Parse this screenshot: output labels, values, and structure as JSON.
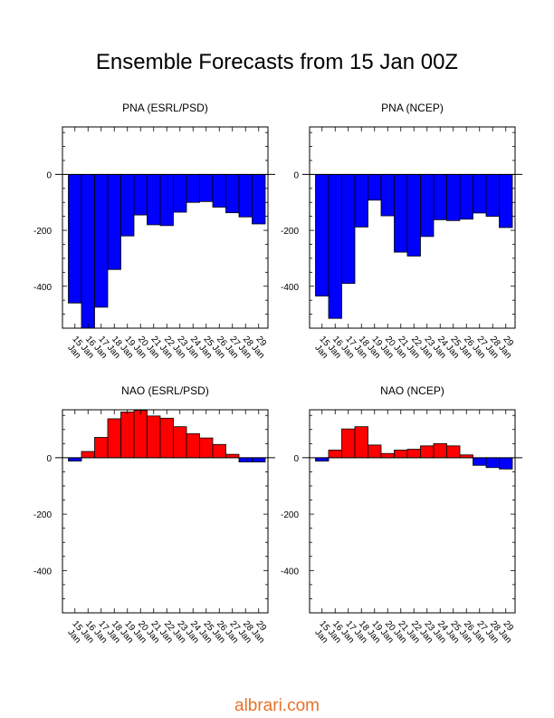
{
  "title": "Ensemble Forecasts from 15 Jan 00Z",
  "watermark": "albrari.com",
  "colors": {
    "positive": "#ff0000",
    "negative": "#0000ff",
    "axis": "#000000"
  },
  "chart_data": [
    {
      "type": "bar",
      "title": "PNA (ESRL/PSD)",
      "categories": [
        "15 Jan",
        "16 Jan",
        "17 Jan",
        "18 Jan",
        "19 Jan",
        "20 Jan",
        "21 Jan",
        "22 Jan",
        "23 Jan",
        "24 Jan",
        "25 Jan",
        "26 Jan",
        "27 Jan",
        "28 Jan",
        "29 Jan"
      ],
      "values": [
        -460,
        -550,
        -475,
        -340,
        -220,
        -145,
        -180,
        -183,
        -135,
        -100,
        -97,
        -117,
        -137,
        -152,
        -177
      ],
      "ylim": [
        -550,
        170
      ],
      "yticks": [
        0,
        -200,
        -400
      ]
    },
    {
      "type": "bar",
      "title": "PNA (NCEP)",
      "categories": [
        "15 Jan",
        "16 Jan",
        "17 Jan",
        "18 Jan",
        "19 Jan",
        "20 Jan",
        "21 Jan",
        "22 Jan",
        "23 Jan",
        "24 Jan",
        "25 Jan",
        "26 Jan",
        "27 Jan",
        "28 Jan",
        "29 Jan"
      ],
      "values": [
        -435,
        -515,
        -390,
        -188,
        -92,
        -148,
        -278,
        -292,
        -222,
        -162,
        -165,
        -160,
        -138,
        -150,
        -190
      ],
      "ylim": [
        -550,
        170
      ],
      "yticks": [
        0,
        -200,
        -400
      ]
    },
    {
      "type": "bar",
      "title": "NAO (ESRL/PSD)",
      "categories": [
        "15 Jan",
        "16 Jan",
        "17 Jan",
        "18 Jan",
        "19 Jan",
        "20 Jan",
        "21 Jan",
        "22 Jan",
        "23 Jan",
        "24 Jan",
        "25 Jan",
        "26 Jan",
        "27 Jan",
        "28 Jan",
        "29 Jan"
      ],
      "values": [
        -12,
        22,
        72,
        138,
        162,
        168,
        148,
        140,
        110,
        85,
        70,
        47,
        12,
        -15,
        -15
      ],
      "ylim": [
        -550,
        170
      ],
      "yticks": [
        0,
        -200,
        -400
      ]
    },
    {
      "type": "bar",
      "title": "NAO (NCEP)",
      "categories": [
        "15 Jan",
        "16 Jan",
        "17 Jan",
        "18 Jan",
        "19 Jan",
        "20 Jan",
        "21 Jan",
        "22 Jan",
        "23 Jan",
        "24 Jan",
        "25 Jan",
        "26 Jan",
        "27 Jan",
        "28 Jan",
        "29 Jan"
      ],
      "values": [
        -12,
        27,
        102,
        110,
        45,
        15,
        27,
        30,
        42,
        50,
        42,
        10,
        -27,
        -35,
        -40
      ],
      "ylim": [
        -550,
        170
      ],
      "yticks": [
        0,
        -200,
        -400
      ]
    }
  ]
}
